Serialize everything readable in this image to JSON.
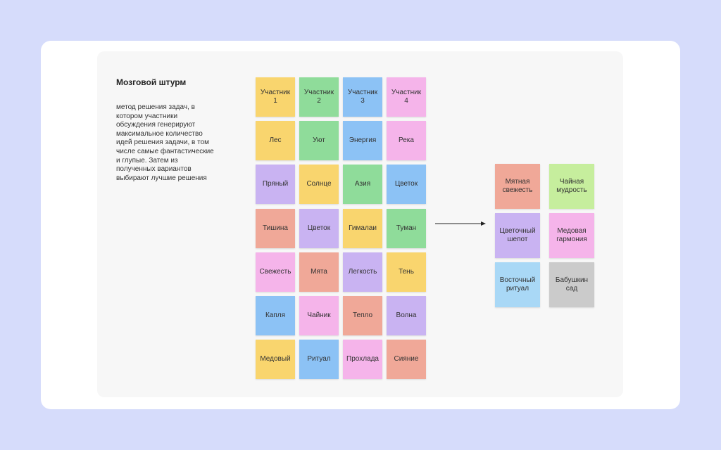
{
  "header": {
    "title": "Мозговой штурм"
  },
  "description": {
    "lines": [
      "метод решения задач, в",
      "котором участники",
      "обсуждения генерируют",
      "максимальное количество",
      "идей решения задачи, в том",
      "числе самые фантастические",
      "и глупые. Затем из",
      "полученных вариантов",
      "выбирают лучшие решения"
    ]
  },
  "grid": {
    "rows": [
      [
        {
          "lines": [
            "Участник",
            "1"
          ],
          "color": "#f9d56e"
        },
        {
          "lines": [
            "Участник",
            "2"
          ],
          "color": "#8fdc9a"
        },
        {
          "lines": [
            "Участник",
            "3"
          ],
          "color": "#8cc2f5"
        },
        {
          "lines": [
            "Участник",
            "4"
          ],
          "color": "#f5b4ea"
        }
      ],
      [
        {
          "lines": [
            "Лес"
          ],
          "color": "#f9d56e"
        },
        {
          "lines": [
            "Уют"
          ],
          "color": "#8fdc9a"
        },
        {
          "lines": [
            "Энергия"
          ],
          "color": "#8cc2f5"
        },
        {
          "lines": [
            "Река"
          ],
          "color": "#f5b4ea"
        }
      ],
      [
        {
          "lines": [
            "Пряный"
          ],
          "color": "#c9b3f2"
        },
        {
          "lines": [
            "Солнце"
          ],
          "color": "#f9d56e"
        },
        {
          "lines": [
            "Азия"
          ],
          "color": "#8fdc9a"
        },
        {
          "lines": [
            "Цветок"
          ],
          "color": "#8cc2f5"
        }
      ],
      [
        {
          "lines": [
            "Тишина"
          ],
          "color": "#f0a898"
        },
        {
          "lines": [
            "Цветок"
          ],
          "color": "#c9b3f2"
        },
        {
          "lines": [
            "Гималаи"
          ],
          "color": "#f9d56e"
        },
        {
          "lines": [
            "Туман"
          ],
          "color": "#8fdc9a"
        }
      ],
      [
        {
          "lines": [
            "Свежесть"
          ],
          "color": "#f5b4ea"
        },
        {
          "lines": [
            "Мята"
          ],
          "color": "#f0a898"
        },
        {
          "lines": [
            "Легкость"
          ],
          "color": "#c9b3f2"
        },
        {
          "lines": [
            "Тень"
          ],
          "color": "#f9d56e"
        }
      ],
      [
        {
          "lines": [
            "Капля"
          ],
          "color": "#8cc2f5"
        },
        {
          "lines": [
            "Чайник"
          ],
          "color": "#f5b4ea"
        },
        {
          "lines": [
            "Тепло"
          ],
          "color": "#f0a898"
        },
        {
          "lines": [
            "Волна"
          ],
          "color": "#c9b3f2"
        }
      ],
      [
        {
          "lines": [
            "Медовый"
          ],
          "color": "#f9d56e"
        },
        {
          "lines": [
            "Ритуал"
          ],
          "color": "#8cc2f5"
        },
        {
          "lines": [
            "Прохлада"
          ],
          "color": "#f5b4ea"
        },
        {
          "lines": [
            "Сияние"
          ],
          "color": "#f0a898"
        }
      ]
    ]
  },
  "results": {
    "rows": [
      [
        {
          "lines": [
            "Мятная",
            "свежесть"
          ],
          "color": "#f0a898"
        },
        {
          "lines": [
            "Чайная",
            "мудрость"
          ],
          "color": "#c6ee9d"
        }
      ],
      [
        {
          "lines": [
            "Цветочный",
            "шепот"
          ],
          "color": "#c9b3f2"
        },
        {
          "lines": [
            "Медовая",
            "гармония"
          ],
          "color": "#f5b4ea"
        }
      ],
      [
        {
          "lines": [
            "Восточный",
            "ритуал"
          ],
          "color": "#a9d8f6"
        },
        {
          "lines": [
            "Бабушкин",
            "сад"
          ],
          "color": "#cbcbcb"
        }
      ]
    ]
  }
}
